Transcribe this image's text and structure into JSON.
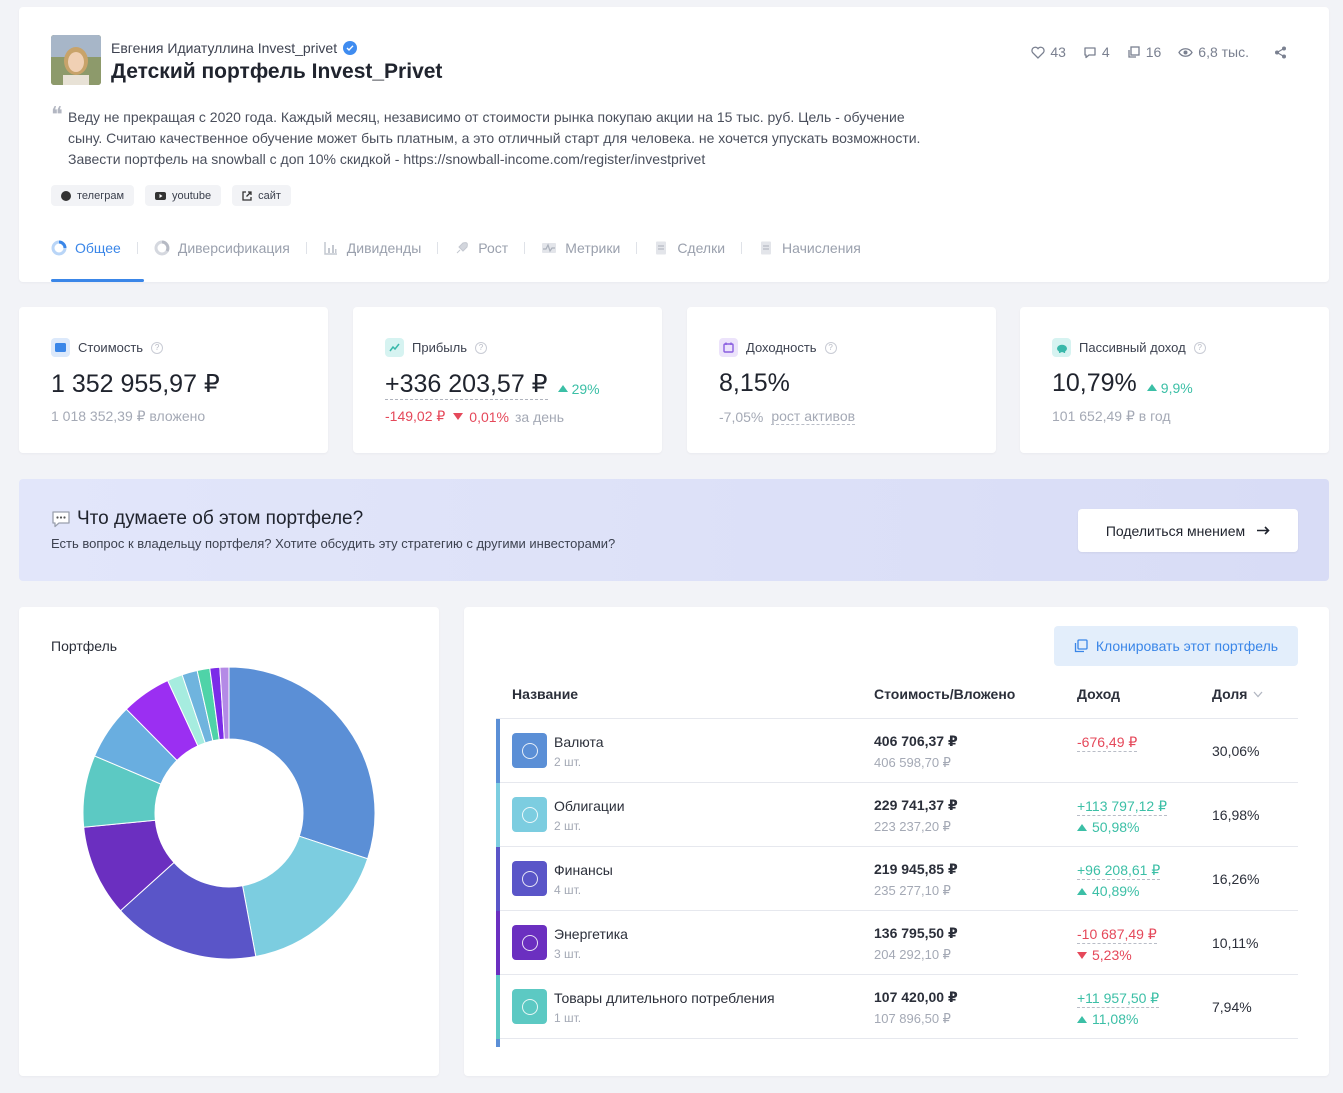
{
  "header": {
    "author": "Евгения Идиатуллина Invest_privet",
    "title": "Детский портфель Invest_Privet",
    "stats": {
      "likes": "43",
      "comments": "4",
      "copies": "16",
      "views": "6,8 тыс."
    },
    "description": [
      "Веду не прекращая с 2020 года. Каждый месяц, независимо от стоимости рынка покупаю акции на 15 тыс. руб. Цель - обучение",
      "сыну. Считаю качественное обучение может быть платным, а это отличный старт для человека. не хочется упускать возможности.",
      "Завести портфель на snowball с доп 10% скидкой - https://snowball-income.com/register/investprivet"
    ],
    "links": {
      "telegram": "телеграм",
      "youtube": "youtube",
      "site": "сайт"
    },
    "tabs": [
      "Общее",
      "Диверсификация",
      "Дивиденды",
      "Рост",
      "Метрики",
      "Сделки",
      "Начисления"
    ],
    "active_tab": "Общее"
  },
  "metrics": {
    "value": {
      "label": "Стоимость",
      "amount": "1 352 955,97 ₽",
      "sub": "1 018 352,39 ₽ вложено"
    },
    "profit": {
      "label": "Прибыль",
      "amount": "+336 203,57 ₽",
      "change": "29%",
      "day_amount": "-149,02 ₽",
      "day_pct": "0,01%",
      "day_label": "за день"
    },
    "yield": {
      "label": "Доходность",
      "amount": "8,15%",
      "sub_value": "-7,05%",
      "sub_label": "рост активов"
    },
    "passive": {
      "label": "Пассивный доход",
      "amount": "10,79%",
      "change": "9,9%",
      "sub": "101 652,49 ₽ в год"
    }
  },
  "banner": {
    "title": "Что думаете об этом портфеле?",
    "subtitle": "Есть вопрос к владельцу портфеля? Хотите обсудить эту стратегию с другими инвесторами?",
    "button": "Поделиться мнением"
  },
  "pie": {
    "title": "Портфель"
  },
  "table": {
    "clone_button": "Клонировать этот портфель",
    "headers": {
      "name": "Название",
      "value": "Стоимость/Вложено",
      "income": "Доход",
      "share": "Доля"
    },
    "rows": [
      {
        "name": "Валюта",
        "qty": "2 шт.",
        "value": "406 706,37 ₽",
        "invested": "406 598,70 ₽",
        "income": "-676,49 ₽",
        "income_pct": "",
        "share": "30,06%",
        "positive": false,
        "color": "#5b8fd6"
      },
      {
        "name": "Облигации",
        "qty": "2 шт.",
        "value": "229 741,37 ₽",
        "invested": "223 237,20 ₽",
        "income": "+113 797,12 ₽",
        "income_pct": "50,98%",
        "share": "16,98%",
        "positive": true,
        "color": "#7ccde0"
      },
      {
        "name": "Финансы",
        "qty": "4 шт.",
        "value": "219 945,85 ₽",
        "invested": "235 277,10 ₽",
        "income": "+96 208,61 ₽",
        "income_pct": "40,89%",
        "share": "16,26%",
        "positive": true,
        "color": "#5a55c8"
      },
      {
        "name": "Энергетика",
        "qty": "3 шт.",
        "value": "136 795,50 ₽",
        "invested": "204 292,10 ₽",
        "income": "-10 687,49 ₽",
        "income_pct": "5,23%",
        "share": "10,11%",
        "positive": false,
        "color": "#6b2fc0"
      },
      {
        "name": "Товары длительного потребления",
        "qty": "1 шт.",
        "value": "107 420,00 ₽",
        "invested": "107 896,50 ₽",
        "income": "+11 957,50 ₽",
        "income_pct": "11,08%",
        "share": "7,94%",
        "positive": true,
        "color": "#5cc9c3"
      }
    ]
  },
  "chart_data": {
    "type": "pie",
    "title": "Портфель",
    "slices": [
      {
        "value": 30.06,
        "color": "#5b8fd6"
      },
      {
        "value": 16.98,
        "color": "#7ccde0"
      },
      {
        "value": 16.26,
        "color": "#5a55c8"
      },
      {
        "value": 10.11,
        "color": "#6b2fc0"
      },
      {
        "value": 7.94,
        "color": "#5cc9c3"
      },
      {
        "value": 6.2,
        "color": "#69aee0"
      },
      {
        "value": 5.5,
        "color": "#9b2ff2"
      },
      {
        "value": 1.7,
        "color": "#a6ecdf"
      },
      {
        "value": 1.7,
        "color": "#6fb4de"
      },
      {
        "value": 1.4,
        "color": "#4fd3a8"
      },
      {
        "value": 1.1,
        "color": "#7b2ce8"
      },
      {
        "value": 1.0,
        "color": "#b48ae6"
      }
    ]
  }
}
